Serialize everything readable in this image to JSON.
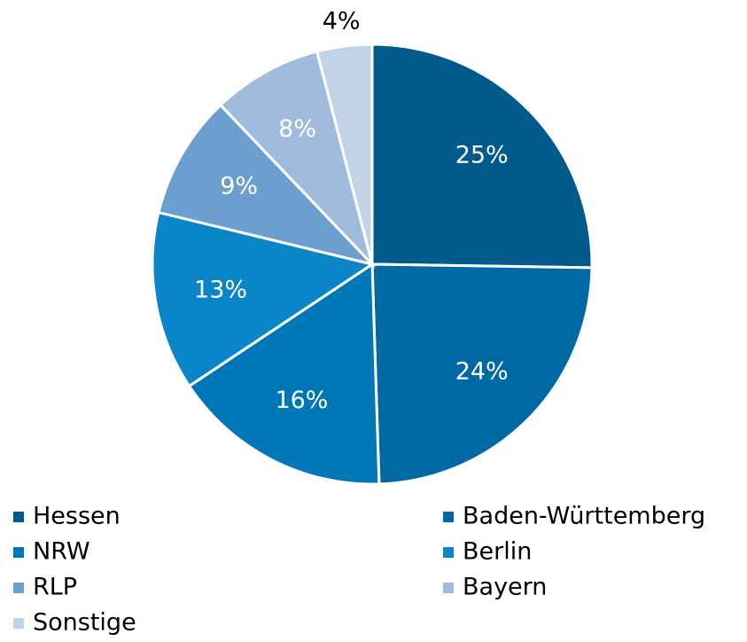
{
  "chart_data": {
    "type": "pie",
    "categories": [
      "Hessen",
      "Baden-Württemberg",
      "NRW",
      "Berlin",
      "RLP",
      "Bayern",
      "Sonstige"
    ],
    "values": [
      25,
      24,
      16,
      13,
      9,
      8,
      4
    ],
    "value_labels": [
      "25%",
      "24%",
      "16%",
      "13%",
      "9%",
      "8%",
      "4%"
    ],
    "colors": [
      "#005a8c",
      "#0069a3",
      "#0078b8",
      "#0a86c8",
      "#6a9fcf",
      "#9fbcdc",
      "#c2d3e8"
    ],
    "legend": "bottom"
  }
}
